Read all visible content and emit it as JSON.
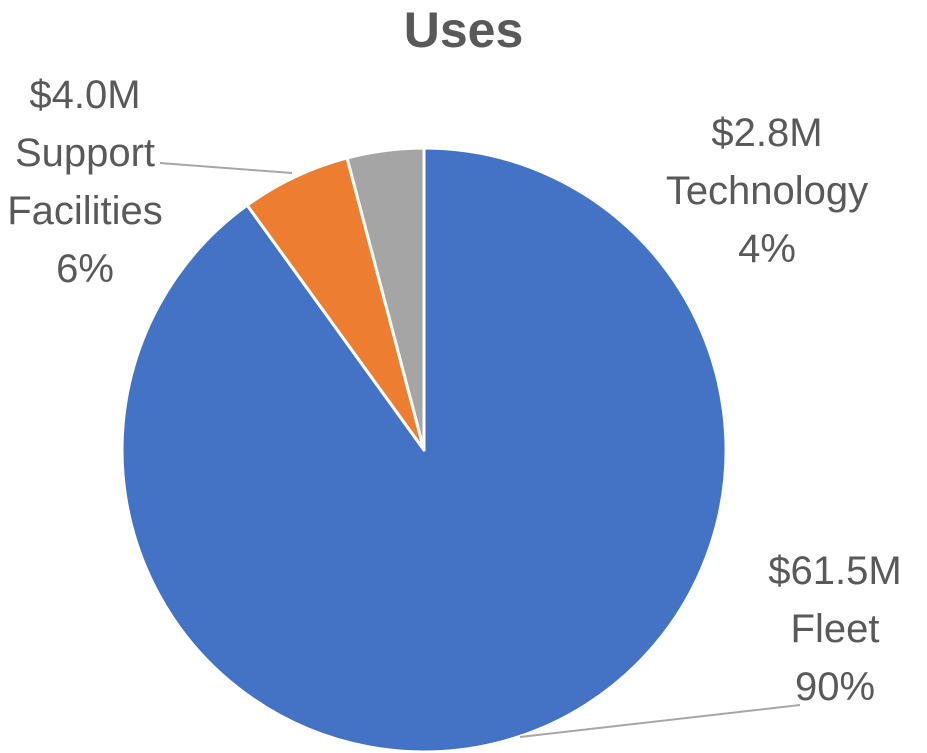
{
  "chart_data": {
    "type": "pie",
    "title": "Uses",
    "categories": [
      "Fleet",
      "Support Facilities",
      "Technology"
    ],
    "values": [
      61.5,
      4.0,
      2.8
    ],
    "value_labels": [
      "$61.5M",
      "$4.0M",
      "$2.8M"
    ],
    "percents": [
      90,
      6,
      4
    ],
    "percent_labels": [
      "90%",
      "6%",
      "4%"
    ],
    "colors": [
      "#4472c4",
      "#ed7d31",
      "#a5a5a5"
    ]
  }
}
